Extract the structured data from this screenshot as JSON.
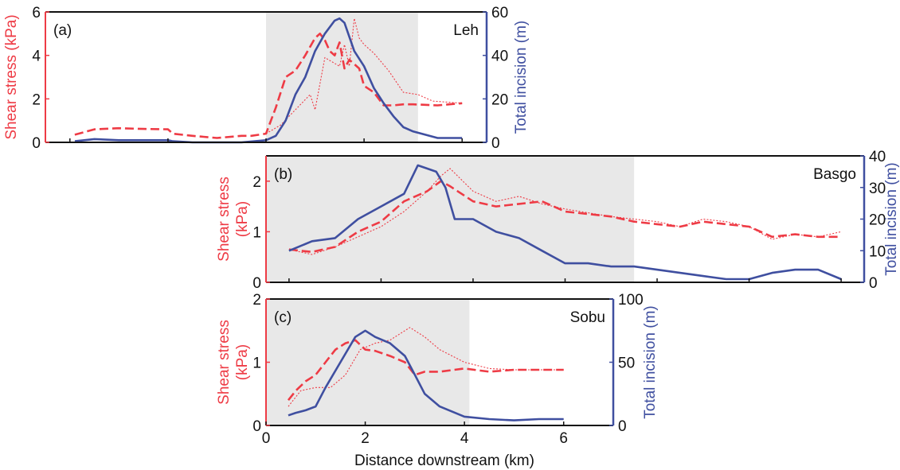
{
  "colors": {
    "shear": "#ee3b45",
    "incision": "#3f4fa0",
    "shade": "#e8e8e8",
    "axis": "#111111"
  },
  "xlabel": "Distance downstream (km)",
  "chart_data": [
    {
      "type": "line",
      "panel_label": "(a)",
      "site": "Leh",
      "xlim": [
        -4.5,
        4.5
      ],
      "xticks": [
        -4,
        -2,
        0,
        2,
        4
      ],
      "shaded_range": [
        0,
        3.1
      ],
      "ylabel_left": "Shear stress (kPa)",
      "ylim_left": [
        0,
        6
      ],
      "yticks_left": [
        0,
        2,
        4,
        6
      ],
      "ylabel_right": "Total incision (m)",
      "ylim_right": [
        0,
        60
      ],
      "yticks_right": [
        0,
        20,
        40,
        60
      ],
      "series": [
        {
          "axis": "left",
          "style": "dashed",
          "x": [
            -3.9,
            -3.5,
            -3.0,
            -2.5,
            -2.0,
            -1.9,
            -1.5,
            -1.0,
            -0.5,
            -0.3,
            0,
            0.2,
            0.4,
            0.6,
            0.8,
            1.0,
            1.1,
            1.2,
            1.3,
            1.4,
            1.5,
            1.6,
            1.7,
            1.9,
            2.0,
            2.2,
            2.4,
            2.6,
            2.8,
            3.0,
            3.5,
            4.0
          ],
          "values": [
            0.35,
            0.6,
            0.65,
            0.62,
            0.6,
            0.4,
            0.3,
            0.2,
            0.3,
            0.3,
            0.4,
            1.6,
            3.0,
            3.3,
            4.0,
            4.8,
            5.0,
            4.7,
            4.2,
            4.0,
            4.6,
            3.4,
            3.8,
            3.4,
            2.6,
            2.3,
            1.7,
            1.7,
            1.75,
            1.75,
            1.7,
            1.8
          ]
        },
        {
          "axis": "left",
          "style": "dotted",
          "x": [
            0,
            0.3,
            0.6,
            0.9,
            1.0,
            1.2,
            1.5,
            1.6,
            1.7,
            1.8,
            1.9,
            2.0,
            2.2,
            2.5,
            2.8,
            3.1,
            3.4,
            4.0
          ],
          "values": [
            0.4,
            0.8,
            1.5,
            2.2,
            1.5,
            3.9,
            3.5,
            4.5,
            3.5,
            5.7,
            4.8,
            4.5,
            4.1,
            3.3,
            2.3,
            2.2,
            1.9,
            1.8
          ]
        },
        {
          "axis": "right",
          "style": "solid",
          "x": [
            -3.9,
            -3.5,
            -3.0,
            -2.5,
            -2.0,
            -1.9,
            -1.5,
            -1.0,
            -0.5,
            0,
            0.2,
            0.4,
            0.6,
            0.8,
            1.0,
            1.2,
            1.4,
            1.5,
            1.6,
            1.8,
            2.0,
            2.2,
            2.4,
            2.6,
            2.8,
            3.0,
            3.5,
            4.0
          ],
          "values": [
            0.5,
            1.5,
            1,
            1,
            1,
            0.5,
            0,
            0,
            0,
            1,
            3,
            10,
            22,
            30,
            42,
            50,
            56,
            57,
            55,
            42,
            35,
            25,
            18,
            12,
            7,
            5,
            2,
            2
          ]
        }
      ]
    },
    {
      "type": "line",
      "panel_label": "(b)",
      "site": "Basgo",
      "xlim": [
        -0.5,
        12.5
      ],
      "xticks": [
        0,
        2,
        4,
        6,
        8,
        10,
        12
      ],
      "shaded_range": [
        -0.5,
        7.5
      ],
      "ylabel_left": "Shear stress (kPa)",
      "ylim_left": [
        0,
        2.5
      ],
      "yticks_left": [
        0,
        1,
        2
      ],
      "ylabel_right": "Total incision (m)",
      "ylim_right": [
        0,
        40
      ],
      "yticks_right": [
        0,
        10,
        20,
        30,
        40
      ],
      "series": [
        {
          "axis": "left",
          "style": "dashed",
          "x": [
            0,
            0.5,
            1.0,
            1.5,
            2.0,
            2.5,
            3.0,
            3.3,
            3.5,
            4.0,
            4.5,
            5.0,
            5.5,
            6.0,
            6.5,
            7.0,
            7.5,
            8.0,
            8.5,
            9.0,
            9.5,
            10.0,
            10.5,
            11.0,
            11.5,
            12.0
          ],
          "values": [
            0.65,
            0.6,
            0.7,
            1.0,
            1.2,
            1.6,
            1.8,
            2.0,
            1.9,
            1.6,
            1.5,
            1.55,
            1.6,
            1.4,
            1.35,
            1.3,
            1.2,
            1.15,
            1.1,
            1.2,
            1.15,
            1.1,
            0.9,
            0.95,
            0.9,
            0.9
          ]
        },
        {
          "axis": "left",
          "style": "dotted",
          "x": [
            0,
            0.5,
            1.0,
            1.5,
            2.0,
            2.5,
            3.0,
            3.3,
            3.5,
            4.0,
            4.5,
            5.0,
            5.5,
            6.0,
            7.0,
            8.0,
            8.5,
            9.0,
            9.5,
            10.0,
            10.5,
            11.0,
            11.5,
            12.0
          ],
          "values": [
            0.65,
            0.55,
            0.7,
            0.9,
            1.1,
            1.4,
            1.8,
            2.1,
            2.25,
            1.8,
            1.6,
            1.7,
            1.55,
            1.45,
            1.3,
            1.2,
            1.1,
            1.25,
            1.2,
            1.1,
            0.85,
            0.95,
            0.9,
            1.0
          ]
        },
        {
          "axis": "right",
          "style": "solid",
          "x": [
            0,
            0.5,
            1.0,
            1.5,
            2.0,
            2.5,
            2.8,
            3.0,
            3.2,
            3.4,
            3.6,
            4.0,
            4.5,
            5.0,
            5.5,
            6.0,
            6.5,
            7.0,
            7.5,
            8.0,
            8.5,
            9.0,
            9.5,
            10.0,
            10.5,
            11.0,
            11.5,
            12.0
          ],
          "values": [
            10,
            13,
            14,
            20,
            24,
            28,
            37,
            36,
            35,
            30,
            20,
            20,
            16,
            14,
            10,
            6,
            6,
            5,
            5,
            4,
            3,
            2,
            1,
            1,
            3,
            4,
            4,
            1
          ]
        }
      ]
    },
    {
      "type": "line",
      "panel_label": "(c)",
      "site": "Sobu",
      "xlim": [
        0,
        7
      ],
      "xticks": [
        0,
        2,
        4,
        6
      ],
      "shaded_range": [
        0,
        4.1
      ],
      "ylabel_left": "Shear stress (kPa)",
      "ylim_left": [
        0,
        2
      ],
      "yticks_left": [
        0,
        1,
        2
      ],
      "ylabel_right": "Total incision (m)",
      "ylim_right": [
        0,
        100
      ],
      "yticks_right": [
        0,
        50,
        100
      ],
      "series": [
        {
          "axis": "left",
          "style": "dashed",
          "x": [
            0.45,
            0.6,
            0.8,
            1.0,
            1.2,
            1.4,
            1.6,
            1.8,
            2.0,
            2.2,
            2.5,
            2.8,
            3.0,
            3.2,
            3.5,
            4.0,
            4.5,
            5.0,
            5.5,
            6.0
          ],
          "values": [
            0.4,
            0.55,
            0.7,
            0.8,
            1.0,
            1.2,
            1.3,
            1.35,
            1.2,
            1.18,
            1.1,
            1.0,
            0.8,
            0.85,
            0.85,
            0.9,
            0.85,
            0.88,
            0.88,
            0.88
          ]
        },
        {
          "axis": "left",
          "style": "dotted",
          "x": [
            0.45,
            0.7,
            1.0,
            1.3,
            1.6,
            1.9,
            2.2,
            2.5,
            2.9,
            3.2,
            3.5,
            4.0,
            4.5,
            5.0,
            5.5,
            6.0
          ],
          "values": [
            0.3,
            0.55,
            0.6,
            0.6,
            0.8,
            1.2,
            1.3,
            1.35,
            1.55,
            1.4,
            1.2,
            1.0,
            0.9,
            0.88,
            0.88,
            0.88
          ]
        },
        {
          "axis": "right",
          "style": "solid",
          "x": [
            0.45,
            0.6,
            0.8,
            1.0,
            1.2,
            1.5,
            1.8,
            2.0,
            2.2,
            2.5,
            2.8,
            3.0,
            3.2,
            3.5,
            4.0,
            4.5,
            5.0,
            5.5,
            6.0
          ],
          "values": [
            8,
            10,
            12,
            15,
            30,
            50,
            70,
            75,
            70,
            65,
            55,
            40,
            25,
            15,
            7,
            5,
            4,
            5,
            5
          ]
        }
      ]
    }
  ]
}
